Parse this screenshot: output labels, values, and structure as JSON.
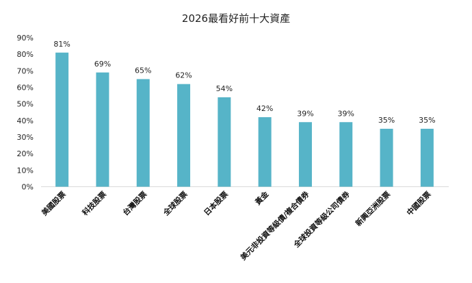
{
  "chart_data": {
    "type": "bar",
    "title": "2026最看好前十大資產",
    "categories": [
      "美國股票",
      "科技股票",
      "台灣股票",
      "全球股票",
      "日本股票",
      "黃金",
      "美元非投資等級債/複合債券",
      "全球投資等級公司債券",
      "新興亞洲股票",
      "中國股票"
    ],
    "values": [
      81,
      69,
      65,
      62,
      54,
      42,
      39,
      39,
      35,
      35
    ],
    "data_labels": [
      "81%",
      "69%",
      "65%",
      "62%",
      "54%",
      "42%",
      "39%",
      "39%",
      "35%",
      "35%"
    ],
    "ylim": [
      0,
      90
    ],
    "yticks": [
      0,
      10,
      20,
      30,
      40,
      50,
      60,
      70,
      80,
      90
    ],
    "ytick_labels": [
      "0%",
      "10%",
      "20%",
      "30%",
      "40%",
      "50%",
      "60%",
      "70%",
      "80%",
      "90%"
    ],
    "xlabel": "",
    "ylabel": "",
    "grid": false,
    "bar_color": "#56B4C8"
  }
}
